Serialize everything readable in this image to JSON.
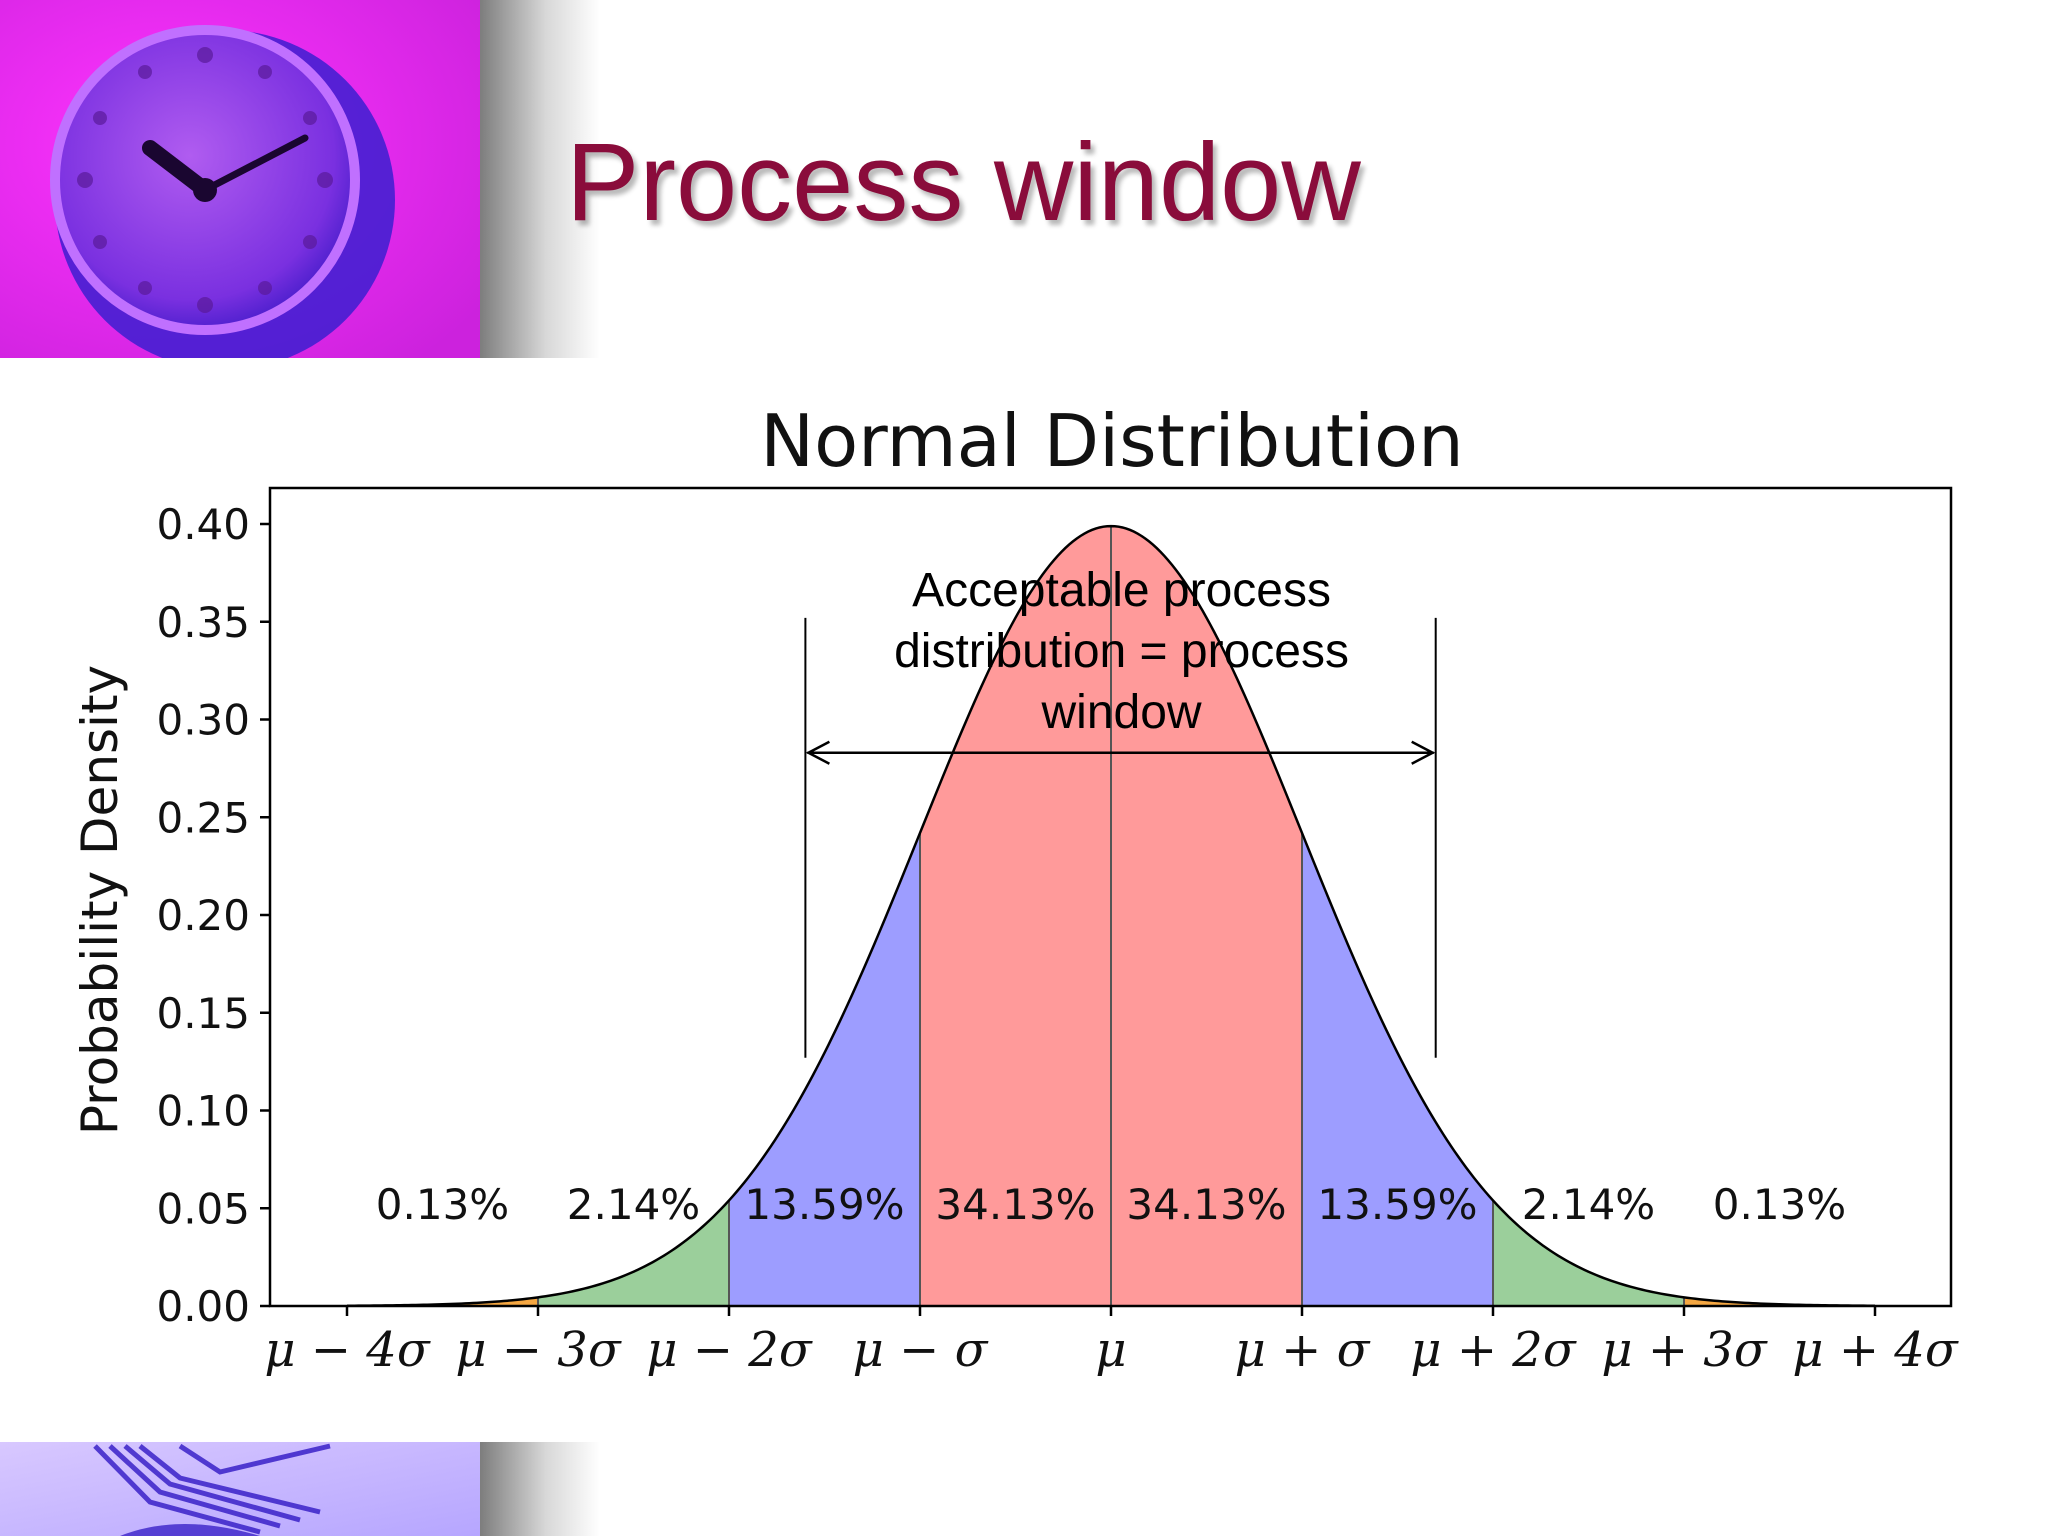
{
  "slide": {
    "title": "Process window"
  },
  "decoration": {
    "top_image": "wall-clock-photo",
    "bottom_image": "spiral-notebook-photo"
  },
  "colors": {
    "title": "#8a0c3b",
    "band_1sigma": "#ff9a9a",
    "band_2sigma": "#9d9dff",
    "band_3sigma": "#9bcf9b",
    "band_4sigma": "#f5a742"
  },
  "chart_data": {
    "type": "area",
    "title": "Normal Distribution",
    "ylabel": "Probability Density",
    "xlabel": "",
    "xlim": [
      -4,
      4
    ],
    "ylim": [
      0,
      0.4
    ],
    "yticks": [
      0.0,
      0.05,
      0.1,
      0.15,
      0.2,
      0.25,
      0.3,
      0.35,
      0.4
    ],
    "ytick_labels": [
      "0.00",
      "0.05",
      "0.10",
      "0.15",
      "0.20",
      "0.25",
      "0.30",
      "0.35",
      "0.40"
    ],
    "xticks": [
      -4,
      -3,
      -2,
      -1,
      0,
      1,
      2,
      3,
      4
    ],
    "xtick_labels": [
      "μ − 4σ",
      "μ − 3σ",
      "μ − 2σ",
      "μ − σ",
      "μ",
      "μ + σ",
      "μ + 2σ",
      "μ + 3σ",
      "μ + 4σ"
    ],
    "grid": false,
    "mean": 0,
    "std": 1,
    "bands": [
      {
        "from": -4,
        "to": -3,
        "percent": "0.13%",
        "color": "#f5a742"
      },
      {
        "from": -3,
        "to": -2,
        "percent": "2.14%",
        "color": "#9bcf9b"
      },
      {
        "from": -2,
        "to": -1,
        "percent": "13.59%",
        "color": "#9d9dff"
      },
      {
        "from": -1,
        "to": 0,
        "percent": "34.13%",
        "color": "#ff9a9a"
      },
      {
        "from": 0,
        "to": 1,
        "percent": "34.13%",
        "color": "#ff9a9a"
      },
      {
        "from": 1,
        "to": 2,
        "percent": "13.59%",
        "color": "#9d9dff"
      },
      {
        "from": 2,
        "to": 3,
        "percent": "2.14%",
        "color": "#9bcf9b"
      },
      {
        "from": 3,
        "to": 4,
        "percent": "0.13%",
        "color": "#f5a742"
      }
    ],
    "annotation": {
      "lines": [
        "Acceptable process",
        "distribution = process",
        "window"
      ],
      "window_x": [
        -1.6,
        1.7
      ],
      "arrow_y": 0.283,
      "bracket_y": [
        0.127,
        0.352
      ]
    }
  }
}
